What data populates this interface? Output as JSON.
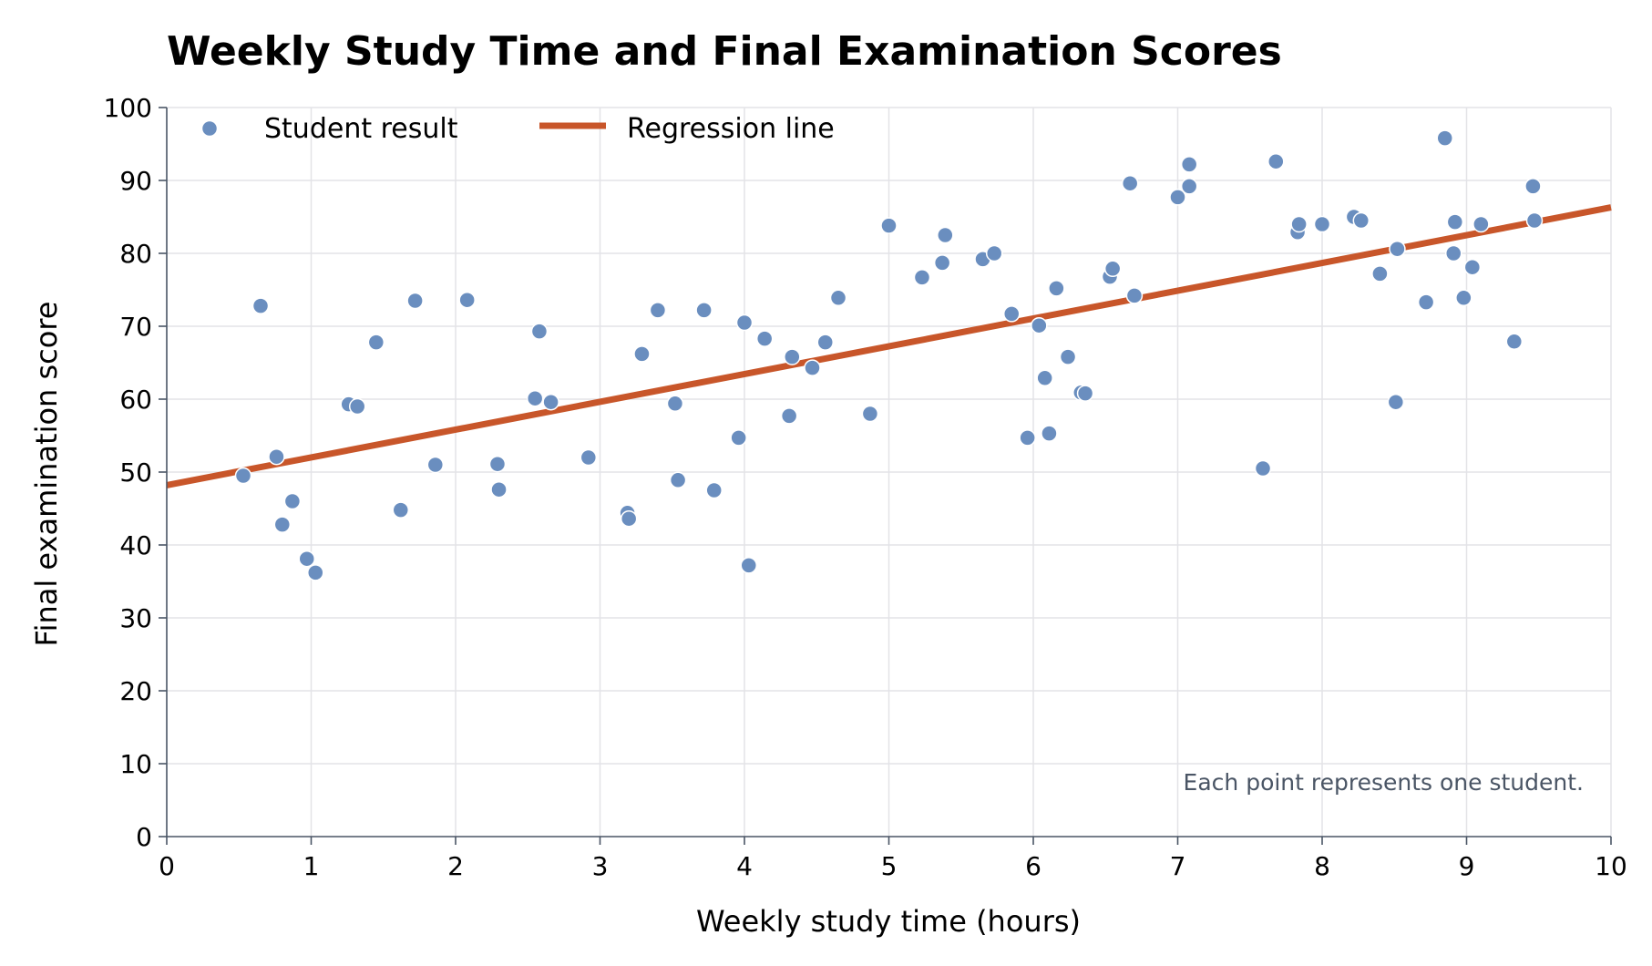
{
  "chart_data": {
    "type": "scatter",
    "title": "Weekly Study Time and Final Examination Scores",
    "xlabel": "Weekly study time (hours)",
    "ylabel": "Final examination score",
    "xlim": [
      0,
      10
    ],
    "ylim": [
      0,
      100
    ],
    "xticks": [
      0,
      1,
      2,
      3,
      4,
      5,
      6,
      7,
      8,
      9,
      10
    ],
    "yticks": [
      0,
      10,
      20,
      30,
      40,
      50,
      60,
      70,
      80,
      90,
      100
    ],
    "grid": true,
    "legend": {
      "placement": "top-left"
    },
    "annotation": "Each point represents one student.",
    "colors": {
      "points": "#6a8ebf",
      "line": "#c8562a",
      "axis": "#4a5565",
      "grid": "#e3e3e7"
    },
    "series": [
      {
        "name": "Student result",
        "kind": "scatter",
        "x": [
          0.53,
          0.65,
          0.76,
          0.8,
          0.87,
          0.97,
          1.03,
          1.26,
          1.32,
          1.45,
          1.62,
          1.72,
          1.86,
          2.08,
          2.29,
          2.3,
          2.55,
          2.58,
          2.66,
          2.92,
          3.19,
          3.2,
          3.29,
          3.4,
          3.52,
          3.54,
          3.72,
          3.79,
          3.96,
          4.0,
          4.03,
          4.14,
          4.31,
          4.33,
          4.47,
          4.56,
          4.65,
          4.87,
          5.0,
          5.23,
          5.37,
          5.39,
          5.65,
          5.73,
          5.85,
          5.96,
          6.04,
          6.08,
          6.11,
          6.16,
          6.24,
          6.33,
          6.36,
          6.53,
          6.55,
          6.67,
          6.7,
          7.0,
          7.08,
          7.08,
          7.59,
          7.68,
          7.83,
          7.84,
          8.0,
          8.22,
          8.27,
          8.4,
          8.51,
          8.52,
          8.72,
          8.85,
          8.91,
          8.92,
          8.98,
          9.04,
          9.1,
          9.33,
          9.46,
          9.47
        ],
        "y": [
          49.5,
          72.8,
          52.1,
          42.8,
          46.0,
          38.1,
          36.2,
          59.3,
          59.0,
          67.8,
          44.8,
          73.5,
          51.0,
          73.6,
          51.1,
          47.6,
          60.1,
          69.3,
          59.6,
          52.0,
          44.4,
          43.6,
          66.2,
          72.2,
          59.4,
          48.9,
          72.2,
          47.5,
          54.7,
          70.5,
          37.2,
          68.3,
          57.7,
          65.8,
          64.3,
          67.8,
          73.9,
          58.0,
          83.8,
          76.7,
          78.7,
          82.5,
          79.2,
          80.0,
          71.7,
          54.7,
          70.1,
          62.9,
          55.3,
          75.2,
          65.8,
          60.9,
          60.8,
          76.8,
          77.9,
          89.6,
          74.2,
          87.7,
          92.2,
          89.2,
          50.5,
          92.6,
          82.9,
          84.0,
          84.0,
          85.0,
          84.5,
          77.2,
          59.6,
          80.6,
          73.3,
          95.8,
          80.0,
          84.3,
          73.9,
          78.1,
          84.0,
          67.9,
          89.2,
          84.5
        ]
      },
      {
        "name": "Regression line",
        "kind": "line",
        "x": [
          0,
          10
        ],
        "y": [
          48.2,
          86.3
        ]
      }
    ]
  }
}
